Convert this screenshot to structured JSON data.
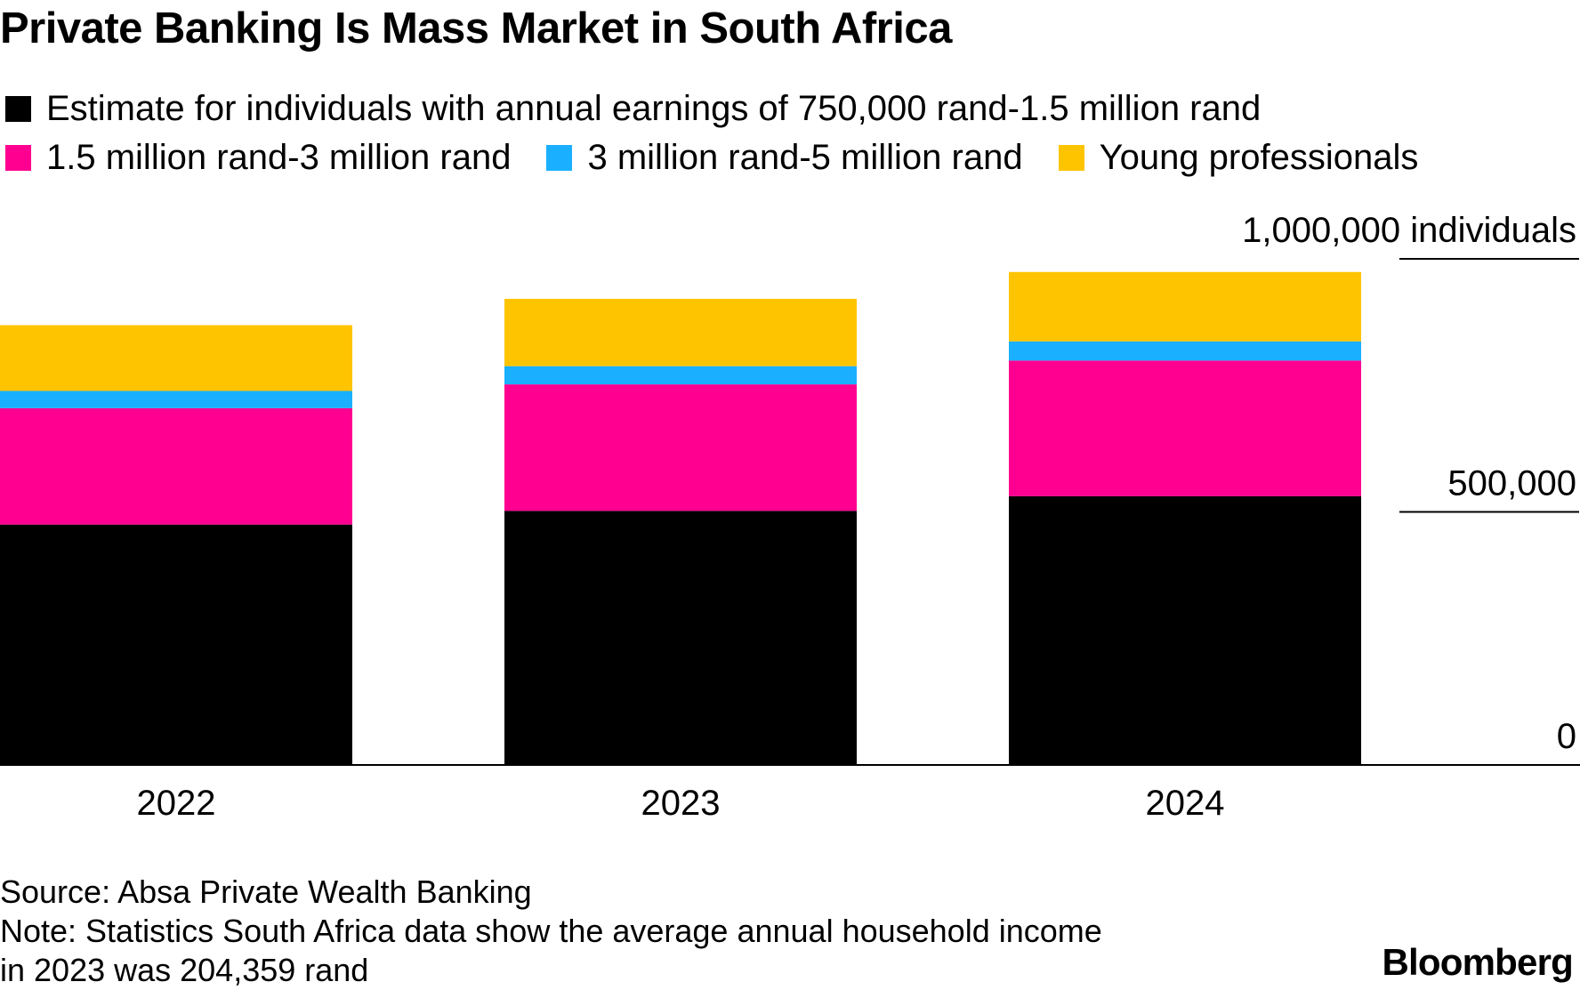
{
  "title": "Private Banking Is Mass Market in South Africa",
  "legend": [
    {
      "label": "Estimate for individuals with annual earnings of 750,000 rand-1.5 million rand",
      "color": "#000000"
    },
    {
      "label": "1.5 million rand-3 million rand",
      "color": "#ff0090"
    },
    {
      "label": "3 million rand-5 million rand",
      "color": "#1ab0ff"
    },
    {
      "label": "Young professionals",
      "color": "#ffc400"
    }
  ],
  "chart_data": {
    "type": "bar",
    "stacked": true,
    "categories": [
      "2022",
      "2023",
      "2024"
    ],
    "series": [
      {
        "name": "Estimate for individuals with annual earnings of 750,000 rand-1.5 million rand",
        "color": "#000000",
        "values": [
          475000,
          502000,
          531000
        ]
      },
      {
        "name": "1.5 million rand-3 million rand",
        "color": "#ff0090",
        "values": [
          230000,
          250000,
          268000
        ]
      },
      {
        "name": "3 million rand-5 million rand",
        "color": "#1ab0ff",
        "values": [
          34000,
          36000,
          38000
        ]
      },
      {
        "name": "Young professionals",
        "color": "#ffc400",
        "values": [
          130000,
          133000,
          137000
        ]
      }
    ],
    "y_ticks": [
      {
        "value": 0,
        "label": "0"
      },
      {
        "value": 500000,
        "label": "500,000"
      },
      {
        "value": 1000000,
        "label": "1,000,000 individuals"
      }
    ],
    "ylim": [
      0,
      1000000
    ],
    "xlabel": "",
    "ylabel": "individuals"
  },
  "footer": {
    "source": "Source: Absa Private Wealth Banking",
    "note_line1": "Note: Statistics South Africa data show the average annual household income",
    "note_line2": "in 2023 was 204,359 rand"
  },
  "brand": "Bloomberg"
}
